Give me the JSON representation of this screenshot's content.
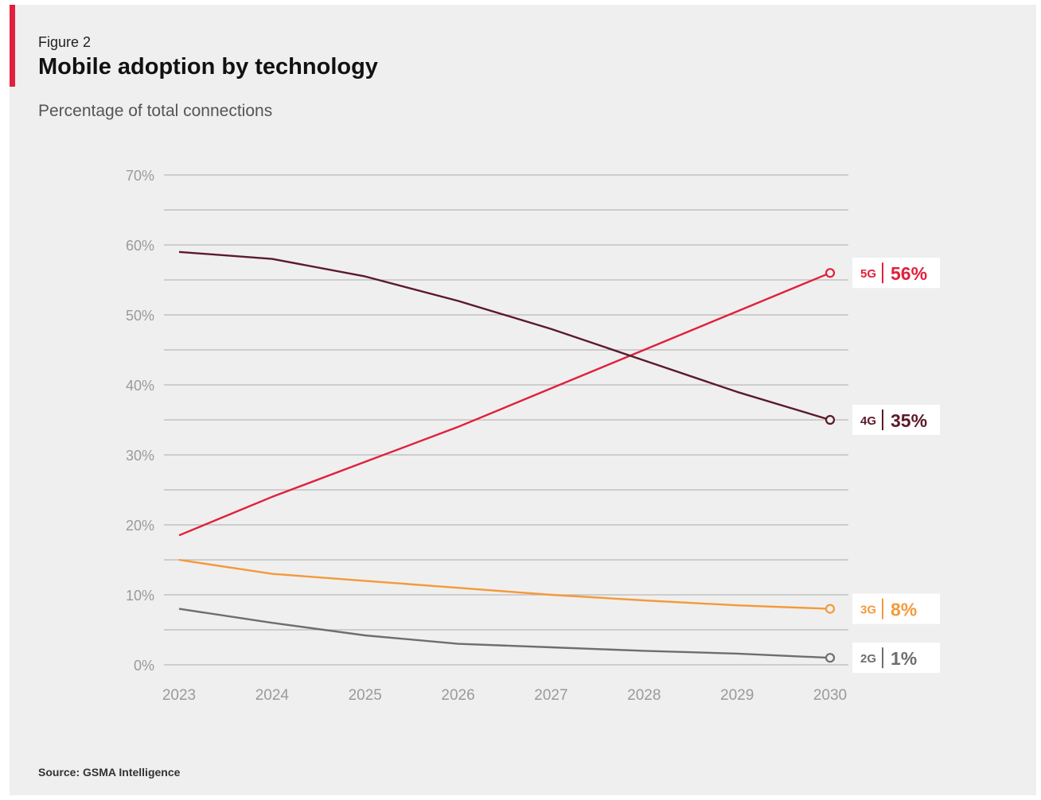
{
  "figure": {
    "label": "Figure 2",
    "title": "Mobile adoption by technology",
    "subtitle": "Percentage of total connections",
    "source": "Source: GSMA Intelligence"
  },
  "colors": {
    "accent": "#e0203c",
    "grid": "#b9b9b9",
    "tick_text": "#9a9a9a",
    "panel_background": "#efefef",
    "label_box": "#ffffff"
  },
  "chart_data": {
    "type": "line",
    "title": "Mobile adoption by technology",
    "subtitle": "Percentage of total connections",
    "x": [
      2023,
      2024,
      2025,
      2026,
      2027,
      2028,
      2029,
      2030
    ],
    "x_tick_labels": [
      "2023",
      "2024",
      "2025",
      "2026",
      "2027",
      "2028",
      "2029",
      "2030"
    ],
    "ylim": [
      0,
      70
    ],
    "y_ticks": [
      0,
      10,
      20,
      30,
      40,
      50,
      60,
      70
    ],
    "y_tick_labels": [
      "0%",
      "10%",
      "20%",
      "30%",
      "40%",
      "50%",
      "60%",
      "70%"
    ],
    "minor_gridlines_every": 5,
    "grid": true,
    "legend": "end-of-line labels (right)",
    "series": [
      {
        "name": "5G",
        "color": "#e0203c",
        "values": [
          18.5,
          24,
          29,
          34,
          39.5,
          45,
          50.5,
          56
        ],
        "end_label": "56%",
        "end_marker": "open-circle"
      },
      {
        "name": "4G",
        "color": "#5c1a2a",
        "values": [
          59,
          58,
          55.5,
          52,
          48,
          43.5,
          39,
          35
        ],
        "end_label": "35%",
        "end_marker": "open-circle"
      },
      {
        "name": "3G",
        "color": "#f5993a",
        "values": [
          15,
          13,
          12,
          11,
          10,
          9.2,
          8.5,
          8
        ],
        "end_label": "8%",
        "end_marker": "open-circle"
      },
      {
        "name": "2G",
        "color": "#6e6e6e",
        "values": [
          8,
          6,
          4.2,
          3,
          2.5,
          2,
          1.6,
          1
        ],
        "end_label": "1%",
        "end_marker": "open-circle"
      }
    ]
  }
}
